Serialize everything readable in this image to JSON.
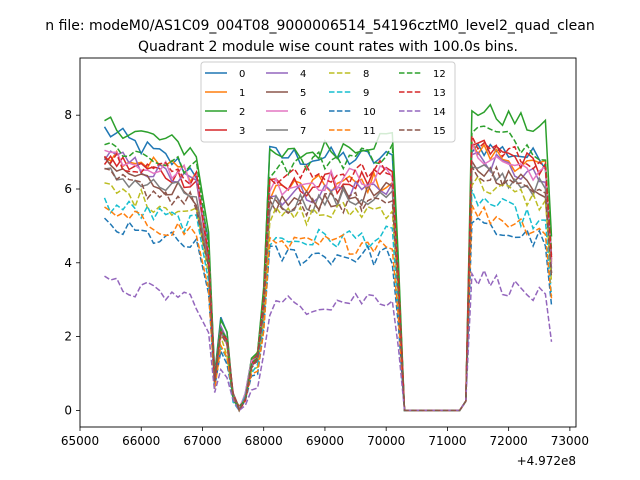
{
  "chart_data": {
    "type": "line",
    "suptitle": "n file: modeM0/AS1C09_004T08_9000006514_54196cztM0_level2_quad_clean",
    "title": "Quadrant 2 module wise count rates with 100.0s bins.",
    "xlabel": "",
    "ylabel": "",
    "offset_text": "+4.972e8",
    "xlim": [
      65000,
      73100
    ],
    "ylim": [
      -0.45,
      9.55
    ],
    "xticks": [
      65000,
      66000,
      67000,
      68000,
      69000,
      70000,
      71000,
      72000,
      73000
    ],
    "xtick_labels": [
      "65000",
      "66000",
      "67000",
      "68000",
      "69000",
      "70000",
      "71000",
      "72000",
      "73000"
    ],
    "yticks": [
      0,
      2,
      4,
      6,
      8
    ],
    "ytick_labels": [
      "0",
      "2",
      "4",
      "6",
      "8"
    ],
    "legend_position": "upper center",
    "x_segments": [
      [
        65400,
        66960
      ],
      [
        67100,
        70200
      ],
      [
        70300,
        71200
      ],
      [
        71300,
        72700
      ]
    ],
    "series": [
      {
        "name": "0",
        "color": "#1f77b4",
        "dash": "solid",
        "plateau": [
          7.6,
          6.4,
          6.9,
          6.8,
          7.2,
          6.8
        ]
      },
      {
        "name": "1",
        "color": "#ff7f0e",
        "dash": "solid",
        "plateau": [
          7.0,
          6.4,
          6.0,
          6.2,
          7.1,
          6.5
        ]
      },
      {
        "name": "2",
        "color": "#2ca02c",
        "dash": "solid",
        "plateau": [
          7.8,
          7.0,
          6.8,
          7.4,
          8.2,
          7.6
        ]
      },
      {
        "name": "3",
        "color": "#d62728",
        "dash": "solid",
        "plateau": [
          6.8,
          6.2,
          6.0,
          6.3,
          7.2,
          6.6
        ]
      },
      {
        "name": "4",
        "color": "#9467bd",
        "dash": "solid",
        "plateau": [
          6.9,
          6.1,
          5.8,
          6.1,
          6.9,
          6.2
        ]
      },
      {
        "name": "5",
        "color": "#8c564b",
        "dash": "solid",
        "plateau": [
          6.6,
          5.8,
          5.6,
          5.9,
          6.6,
          6.0
        ]
      },
      {
        "name": "6",
        "color": "#e377c2",
        "dash": "solid",
        "plateau": [
          7.0,
          6.3,
          6.1,
          6.4,
          7.0,
          6.4
        ]
      },
      {
        "name": "7",
        "color": "#7f7f7f",
        "dash": "solid",
        "plateau": [
          6.4,
          5.8,
          5.6,
          5.8,
          6.5,
          6.0
        ]
      },
      {
        "name": "8",
        "color": "#bcbd22",
        "dash": "dashed",
        "plateau": [
          6.0,
          5.3,
          5.2,
          5.5,
          6.2,
          5.6
        ]
      },
      {
        "name": "9",
        "color": "#17becf",
        "dash": "dashed",
        "plateau": [
          5.6,
          5.0,
          4.6,
          4.7,
          5.8,
          5.0
        ]
      },
      {
        "name": "10",
        "color": "#1f77b4",
        "dash": "dashed",
        "plateau": [
          5.0,
          4.4,
          4.2,
          4.2,
          5.0,
          4.6
        ]
      },
      {
        "name": "11",
        "color": "#ff7f0e",
        "dash": "dashed",
        "plateau": [
          5.3,
          4.8,
          4.4,
          4.6,
          5.4,
          4.9
        ]
      },
      {
        "name": "12",
        "color": "#2ca02c",
        "dash": "dashed",
        "plateau": [
          7.2,
          6.5,
          6.6,
          7.0,
          7.7,
          7.0
        ]
      },
      {
        "name": "13",
        "color": "#d62728",
        "dash": "dashed",
        "plateau": [
          6.9,
          6.3,
          6.3,
          6.5,
          7.3,
          6.7
        ]
      },
      {
        "name": "14",
        "color": "#9467bd",
        "dash": "dashed",
        "plateau": [
          3.4,
          3.0,
          2.8,
          3.1,
          3.7,
          3.0
        ]
      },
      {
        "name": "15",
        "color": "#8c564b",
        "dash": "dashed",
        "plateau": [
          6.3,
          5.6,
          5.5,
          5.7,
          6.6,
          5.8
        ]
      }
    ]
  }
}
